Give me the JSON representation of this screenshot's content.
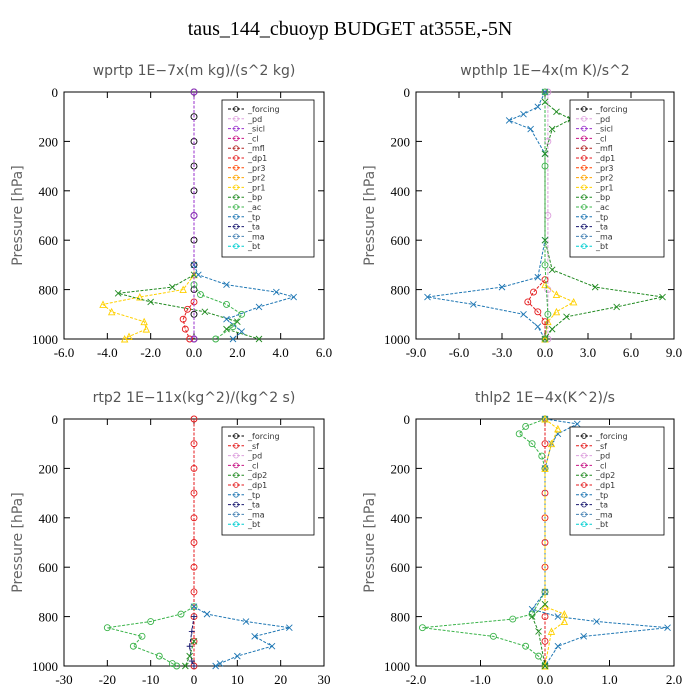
{
  "title": "taus_144_cbuoyp  BUDGET at355E,-5N",
  "chart_data": [
    {
      "type": "line",
      "title": "wprtp  1E−7x(m kg)/(s^2 kg)",
      "ylabel": "Pressure [hPa]",
      "xlim": [
        -6,
        6
      ],
      "ylim": [
        1000,
        0
      ],
      "xticks": [
        -6,
        -4,
        -2,
        0,
        2,
        4,
        6
      ],
      "xtick_labels": [
        "-6.0",
        "-4.0",
        "-2.0",
        "0.0",
        "2.0",
        "4.0",
        "6.0"
      ],
      "yticks": [
        0,
        200,
        400,
        600,
        800,
        1000
      ],
      "legend": [
        "_forcing",
        "_pd",
        "_sicl",
        "_cl",
        "_mfl",
        "_dp1",
        "_pr3",
        "_pr2",
        "_pr1",
        "_bp",
        "_ac",
        "_tp",
        "_ta",
        "_ma",
        "_bt"
      ],
      "legend_placement": "top-right",
      "series": [
        {
          "name": "_forcing",
          "color": "#000000",
          "marker": "circle",
          "points": [
            [
              0,
              0
            ],
            [
              0,
              100
            ],
            [
              0,
              200
            ],
            [
              0,
              300
            ],
            [
              0,
              400
            ],
            [
              0,
              500
            ],
            [
              0,
              600
            ],
            [
              0,
              700
            ],
            [
              0,
              800
            ],
            [
              0,
              900
            ],
            [
              0,
              1000
            ]
          ]
        },
        {
          "name": "_pr1",
          "color": "#ffd000",
          "marker": "triangle",
          "points": [
            [
              0,
              740
            ],
            [
              -0.5,
              800
            ],
            [
              -2.5,
              830
            ],
            [
              -4.2,
              860
            ],
            [
              -3.8,
              890
            ],
            [
              -2.3,
              930
            ],
            [
              -2.2,
              960
            ],
            [
              -3.0,
              990
            ],
            [
              -3.2,
              1000
            ]
          ]
        },
        {
          "name": "_bp",
          "color": "#228b22",
          "marker": "x",
          "points": [
            [
              0,
              740
            ],
            [
              -1.0,
              790
            ],
            [
              -3.5,
              815
            ],
            [
              -2.0,
              850
            ],
            [
              0.5,
              890
            ],
            [
              2.0,
              930
            ],
            [
              1.5,
              960
            ],
            [
              3.0,
              1000
            ]
          ]
        },
        {
          "name": "_ac",
          "color": "#3cb44b",
          "marker": "circle",
          "points": [
            [
              0,
              780
            ],
            [
              0.3,
              820
            ],
            [
              1.5,
              860
            ],
            [
              2.2,
              900
            ],
            [
              1.8,
              950
            ],
            [
              1.0,
              1000
            ]
          ]
        },
        {
          "name": "_tp",
          "color": "#1f77b4",
          "marker": "x",
          "points": [
            [
              0,
              700
            ],
            [
              0.2,
              740
            ],
            [
              1.5,
              780
            ],
            [
              3.8,
              810
            ],
            [
              4.6,
              830
            ],
            [
              3.0,
              870
            ],
            [
              1.5,
              920
            ],
            [
              2.2,
              970
            ],
            [
              1.8,
              1000
            ]
          ]
        },
        {
          "name": "_pr3",
          "color": "#e41a1c",
          "marker": "circle",
          "points": [
            [
              0,
              850
            ],
            [
              -0.3,
              880
            ],
            [
              -0.5,
              920
            ],
            [
              -0.4,
              960
            ],
            [
              -0.2,
              1000
            ]
          ]
        },
        {
          "name": "_sicl",
          "color": "#9932cc",
          "marker": "circle",
          "points": [
            [
              0,
              0
            ],
            [
              0,
              500
            ],
            [
              0,
              1000
            ]
          ]
        }
      ]
    },
    {
      "type": "line",
      "title": "wpthlp  1E−4x(m K)/s^2",
      "ylabel": "Pressure [hPa]",
      "xlim": [
        -9,
        9
      ],
      "ylim": [
        1000,
        0
      ],
      "xticks": [
        -9,
        -6,
        -3,
        0,
        3,
        6,
        9
      ],
      "xtick_labels": [
        "-9.0",
        "-6.0",
        "-3.0",
        "0.0",
        "3.0",
        "6.0",
        "9.0"
      ],
      "yticks": [
        0,
        200,
        400,
        600,
        800,
        1000
      ],
      "legend": [
        "_forcing",
        "_pd",
        "_sicl",
        "_cl",
        "_mfl",
        "_dp1",
        "_pr3",
        "_pr2",
        "_pr1",
        "_bp",
        "_ac",
        "_tp",
        "_ta",
        "_ma",
        "_bt"
      ],
      "legend_placement": "top-right",
      "series": [
        {
          "name": "_pd",
          "color": "#dda0dd",
          "marker": "circle",
          "points": [
            [
              0.2,
              0
            ],
            [
              0.2,
              200
            ],
            [
              0.2,
              500
            ],
            [
              0.2,
              800
            ],
            [
              0.2,
              1000
            ]
          ]
        },
        {
          "name": "_tp",
          "color": "#1f77b4",
          "marker": "x",
          "points": [
            [
              0,
              0
            ],
            [
              -0.5,
              60
            ],
            [
              -1.5,
              90
            ],
            [
              -2.5,
              115
            ],
            [
              -1.0,
              150
            ],
            [
              0,
              250
            ],
            [
              0,
              600
            ],
            [
              -0.5,
              750
            ],
            [
              -3.0,
              790
            ],
            [
              -8.2,
              830
            ],
            [
              -5.0,
              860
            ],
            [
              -1.5,
              900
            ],
            [
              -0.5,
              950
            ],
            [
              0,
              1000
            ]
          ]
        },
        {
          "name": "_bp",
          "color": "#228b22",
          "marker": "x",
          "points": [
            [
              0,
              40
            ],
            [
              0.8,
              80
            ],
            [
              1.8,
              110
            ],
            [
              0.5,
              150
            ],
            [
              0,
              250
            ],
            [
              0,
              600
            ],
            [
              0.5,
              720
            ],
            [
              3.5,
              790
            ],
            [
              8.2,
              830
            ],
            [
              5.0,
              870
            ],
            [
              1.5,
              910
            ],
            [
              0.5,
              960
            ],
            [
              0,
              1000
            ]
          ]
        },
        {
          "name": "_pr1",
          "color": "#ffd000",
          "marker": "triangle",
          "points": [
            [
              0,
              780
            ],
            [
              0.8,
              820
            ],
            [
              2.0,
              850
            ],
            [
              0.8,
              890
            ],
            [
              0.2,
              930
            ],
            [
              0,
              1000
            ]
          ]
        },
        {
          "name": "_pr3",
          "color": "#e41a1c",
          "marker": "circle",
          "points": [
            [
              0,
              760
            ],
            [
              -0.8,
              810
            ],
            [
              -1.2,
              850
            ],
            [
              -0.5,
              890
            ],
            [
              0,
              930
            ],
            [
              0,
              1000
            ]
          ]
        },
        {
          "name": "_ac",
          "color": "#3cb44b",
          "marker": "circle",
          "points": [
            [
              0,
              0
            ],
            [
              0,
              300
            ],
            [
              0,
              700
            ],
            [
              0.2,
              900
            ],
            [
              0,
              1000
            ]
          ]
        }
      ]
    },
    {
      "type": "line",
      "title": "rtp2  1E−11x(kg^2)/(kg^2 s)",
      "ylabel": "Pressure [hPa]",
      "xlim": [
        -30,
        30
      ],
      "ylim": [
        1000,
        0
      ],
      "xticks": [
        -30,
        -20,
        -10,
        0,
        10,
        20,
        30
      ],
      "xtick_labels": [
        "-30",
        "-20",
        "-10",
        "0",
        "10",
        "20",
        "30"
      ],
      "yticks": [
        0,
        200,
        400,
        600,
        800,
        1000
      ],
      "legend": [
        "_forcing",
        "_sf",
        "_pd",
        "_cl",
        "_dp2",
        "_dp1",
        "_tp",
        "_ta",
        "_ma",
        "_bt"
      ],
      "legend_placement": "top-right",
      "series": [
        {
          "name": "_forcing",
          "color": "#e41a1c",
          "marker": "circle",
          "points": [
            [
              0,
              0
            ],
            [
              0,
              100
            ],
            [
              0,
              200
            ],
            [
              0,
              300
            ],
            [
              0,
              400
            ],
            [
              0,
              500
            ],
            [
              0,
              600
            ],
            [
              0,
              700
            ],
            [
              0,
              800
            ],
            [
              0,
              900
            ],
            [
              0,
              1000
            ]
          ]
        },
        {
          "name": "_dp1",
          "color": "#3cb44b",
          "marker": "circle",
          "points": [
            [
              0,
              760
            ],
            [
              -3,
              790
            ],
            [
              -10,
              820
            ],
            [
              -20,
              845
            ],
            [
              -12,
              880
            ],
            [
              -14,
              920
            ],
            [
              -8,
              960
            ],
            [
              -5,
              990
            ],
            [
              -4,
              1000
            ]
          ]
        },
        {
          "name": "_tp",
          "color": "#1f77b4",
          "marker": "x",
          "points": [
            [
              0,
              760
            ],
            [
              3,
              790
            ],
            [
              12,
              820
            ],
            [
              22,
              845
            ],
            [
              14,
              880
            ],
            [
              18,
              920
            ],
            [
              10,
              960
            ],
            [
              6,
              990
            ],
            [
              5,
              1000
            ]
          ]
        },
        {
          "name": "_ta",
          "color": "#191970",
          "marker": "plus",
          "points": [
            [
              0,
              800
            ],
            [
              -0.5,
              860
            ],
            [
              -1,
              920
            ],
            [
              -0.5,
              980
            ],
            [
              0,
              1000
            ]
          ]
        },
        {
          "name": "_dp2",
          "color": "#228b22",
          "marker": "x",
          "points": [
            [
              0,
              900
            ],
            [
              -1,
              960
            ],
            [
              -2,
              1000
            ]
          ]
        }
      ]
    },
    {
      "type": "line",
      "title": "thlp2  1E−4x(K^2)/s",
      "ylabel": "Pressure [hPa]",
      "xlim": [
        -2,
        2
      ],
      "ylim": [
        1000,
        0
      ],
      "xticks": [
        -2,
        -1,
        0,
        1,
        2
      ],
      "xtick_labels": [
        "-2.0",
        "-1.0",
        "0.0",
        "1.0",
        "2.0"
      ],
      "yticks": [
        0,
        200,
        400,
        600,
        800,
        1000
      ],
      "legend": [
        "_forcing",
        "_sf",
        "_pd",
        "_cl",
        "_dp2",
        "_dp1",
        "_tp",
        "_ta",
        "_ma",
        "_bt"
      ],
      "legend_placement": "top-right",
      "series": [
        {
          "name": "_forcing",
          "color": "#e41a1c",
          "marker": "circle",
          "points": [
            [
              0,
              0
            ],
            [
              0,
              100
            ],
            [
              0,
              200
            ],
            [
              0,
              300
            ],
            [
              0,
              400
            ],
            [
              0,
              500
            ],
            [
              0,
              600
            ],
            [
              0,
              700
            ],
            [
              0,
              800
            ],
            [
              0,
              900
            ],
            [
              0,
              1000
            ]
          ]
        },
        {
          "name": "_dp1",
          "color": "#3cb44b",
          "marker": "circle",
          "points": [
            [
              0,
              0
            ],
            [
              -0.3,
              30
            ],
            [
              -0.4,
              60
            ],
            [
              -0.2,
              100
            ],
            [
              -0.05,
              150
            ],
            [
              0,
              200
            ],
            [
              0,
              700
            ],
            [
              -0.2,
              790
            ],
            [
              -0.5,
              810
            ],
            [
              -1.9,
              845
            ],
            [
              -0.8,
              880
            ],
            [
              -0.3,
              920
            ],
            [
              -0.1,
              960
            ],
            [
              0,
              1000
            ]
          ]
        },
        {
          "name": "_tp",
          "color": "#1f77b4",
          "marker": "x",
          "points": [
            [
              0,
              0
            ],
            [
              0.5,
              20
            ],
            [
              0.2,
              60
            ],
            [
              0.1,
              100
            ],
            [
              0,
              200
            ],
            [
              0,
              700
            ],
            [
              -0.2,
              770
            ],
            [
              0.2,
              800
            ],
            [
              0.8,
              820
            ],
            [
              1.9,
              845
            ],
            [
              0.6,
              880
            ],
            [
              0.2,
              920
            ],
            [
              0,
              1000
            ]
          ]
        },
        {
          "name": "_pd",
          "color": "#ffd000",
          "marker": "triangle",
          "points": [
            [
              0,
              0
            ],
            [
              0.2,
              40
            ],
            [
              0.1,
              100
            ],
            [
              0,
              200
            ],
            [
              0,
              760
            ],
            [
              0.3,
              790
            ],
            [
              0.3,
              820
            ],
            [
              0.1,
              860
            ],
            [
              0,
              1000
            ]
          ]
        },
        {
          "name": "_dp2",
          "color": "#228b22",
          "marker": "x",
          "points": [
            [
              0,
              750
            ],
            [
              -0.2,
              800
            ],
            [
              -0.1,
              860
            ],
            [
              0,
              1000
            ]
          ]
        }
      ]
    }
  ]
}
